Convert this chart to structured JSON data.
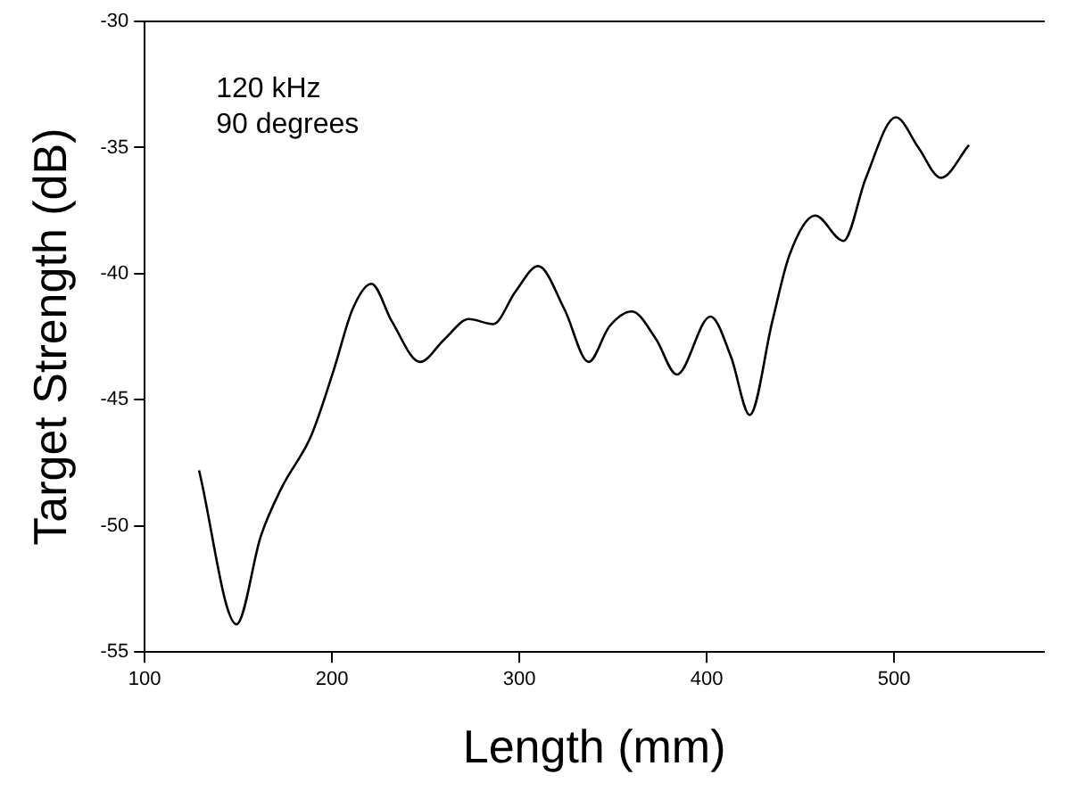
{
  "chart_data": {
    "type": "line",
    "xlabel": "Length (mm)",
    "ylabel": "Target Strength (dB)",
    "annotations": [
      "120 kHz",
      "90 degrees"
    ],
    "xlim": [
      100,
      580
    ],
    "xticks": [
      100,
      200,
      300,
      400,
      500
    ],
    "ylim": [
      -55,
      -30
    ],
    "yticks": [
      -55,
      -50,
      -45,
      -40,
      -35,
      -30
    ],
    "grid": false,
    "legend": false,
    "marker": "none",
    "line_style": "solid",
    "series": [
      {
        "color": "#000000",
        "x": [
          129,
          149,
          162,
          173,
          189,
          201,
          211,
          221,
          232,
          247,
          260,
          273,
          286,
          298,
          310,
          324,
          337,
          348,
          360,
          373,
          384,
          402,
          413,
          423,
          435,
          444,
          458,
          473,
          485,
          501,
          513,
          525,
          540
        ],
        "values": [
          -47.8,
          -53.9,
          -50.4,
          -48.5,
          -46.4,
          -43.8,
          -41.4,
          -40.4,
          -41.9,
          -43.5,
          -42.6,
          -41.8,
          -42.0,
          -40.7,
          -39.7,
          -41.4,
          -43.5,
          -42.1,
          -41.5,
          -42.6,
          -44.0,
          -41.7,
          -43.3,
          -45.6,
          -41.9,
          -39.3,
          -37.7,
          -38.7,
          -36.2,
          -33.8,
          -35.0,
          -36.2,
          -34.9
        ]
      }
    ]
  }
}
